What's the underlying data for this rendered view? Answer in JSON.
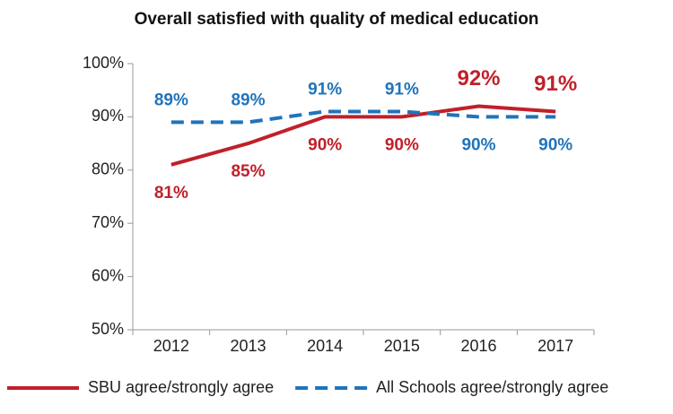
{
  "chart_data": {
    "type": "line",
    "title": "Overall satisfied with quality of medical education",
    "categories": [
      "2012",
      "2013",
      "2014",
      "2015",
      "2016",
      "2017"
    ],
    "series": [
      {
        "name": "SBU agree/strongly agree",
        "color": "#c0202a",
        "dash": false,
        "values": [
          81,
          85,
          90,
          90,
          92,
          91
        ],
        "value_labels": [
          "81%",
          "85%",
          "90%",
          "90%",
          "92%",
          "91%"
        ]
      },
      {
        "name": "All Schools agree/strongly agree",
        "color": "#1f74bb",
        "dash": true,
        "values": [
          89,
          89,
          91,
          91,
          90,
          90
        ],
        "value_labels": [
          "89%",
          "89%",
          "91%",
          "91%",
          "90%",
          "90%"
        ]
      }
    ],
    "ylim": [
      50,
      100
    ],
    "yticks": [
      {
        "value": 50,
        "label": "50%"
      },
      {
        "value": 60,
        "label": "60%"
      },
      {
        "value": 70,
        "label": "70%"
      },
      {
        "value": 80,
        "label": "80%"
      },
      {
        "value": 90,
        "label": "90%"
      },
      {
        "value": 100,
        "label": "100%"
      }
    ],
    "grid": false,
    "legend": "bottom"
  }
}
